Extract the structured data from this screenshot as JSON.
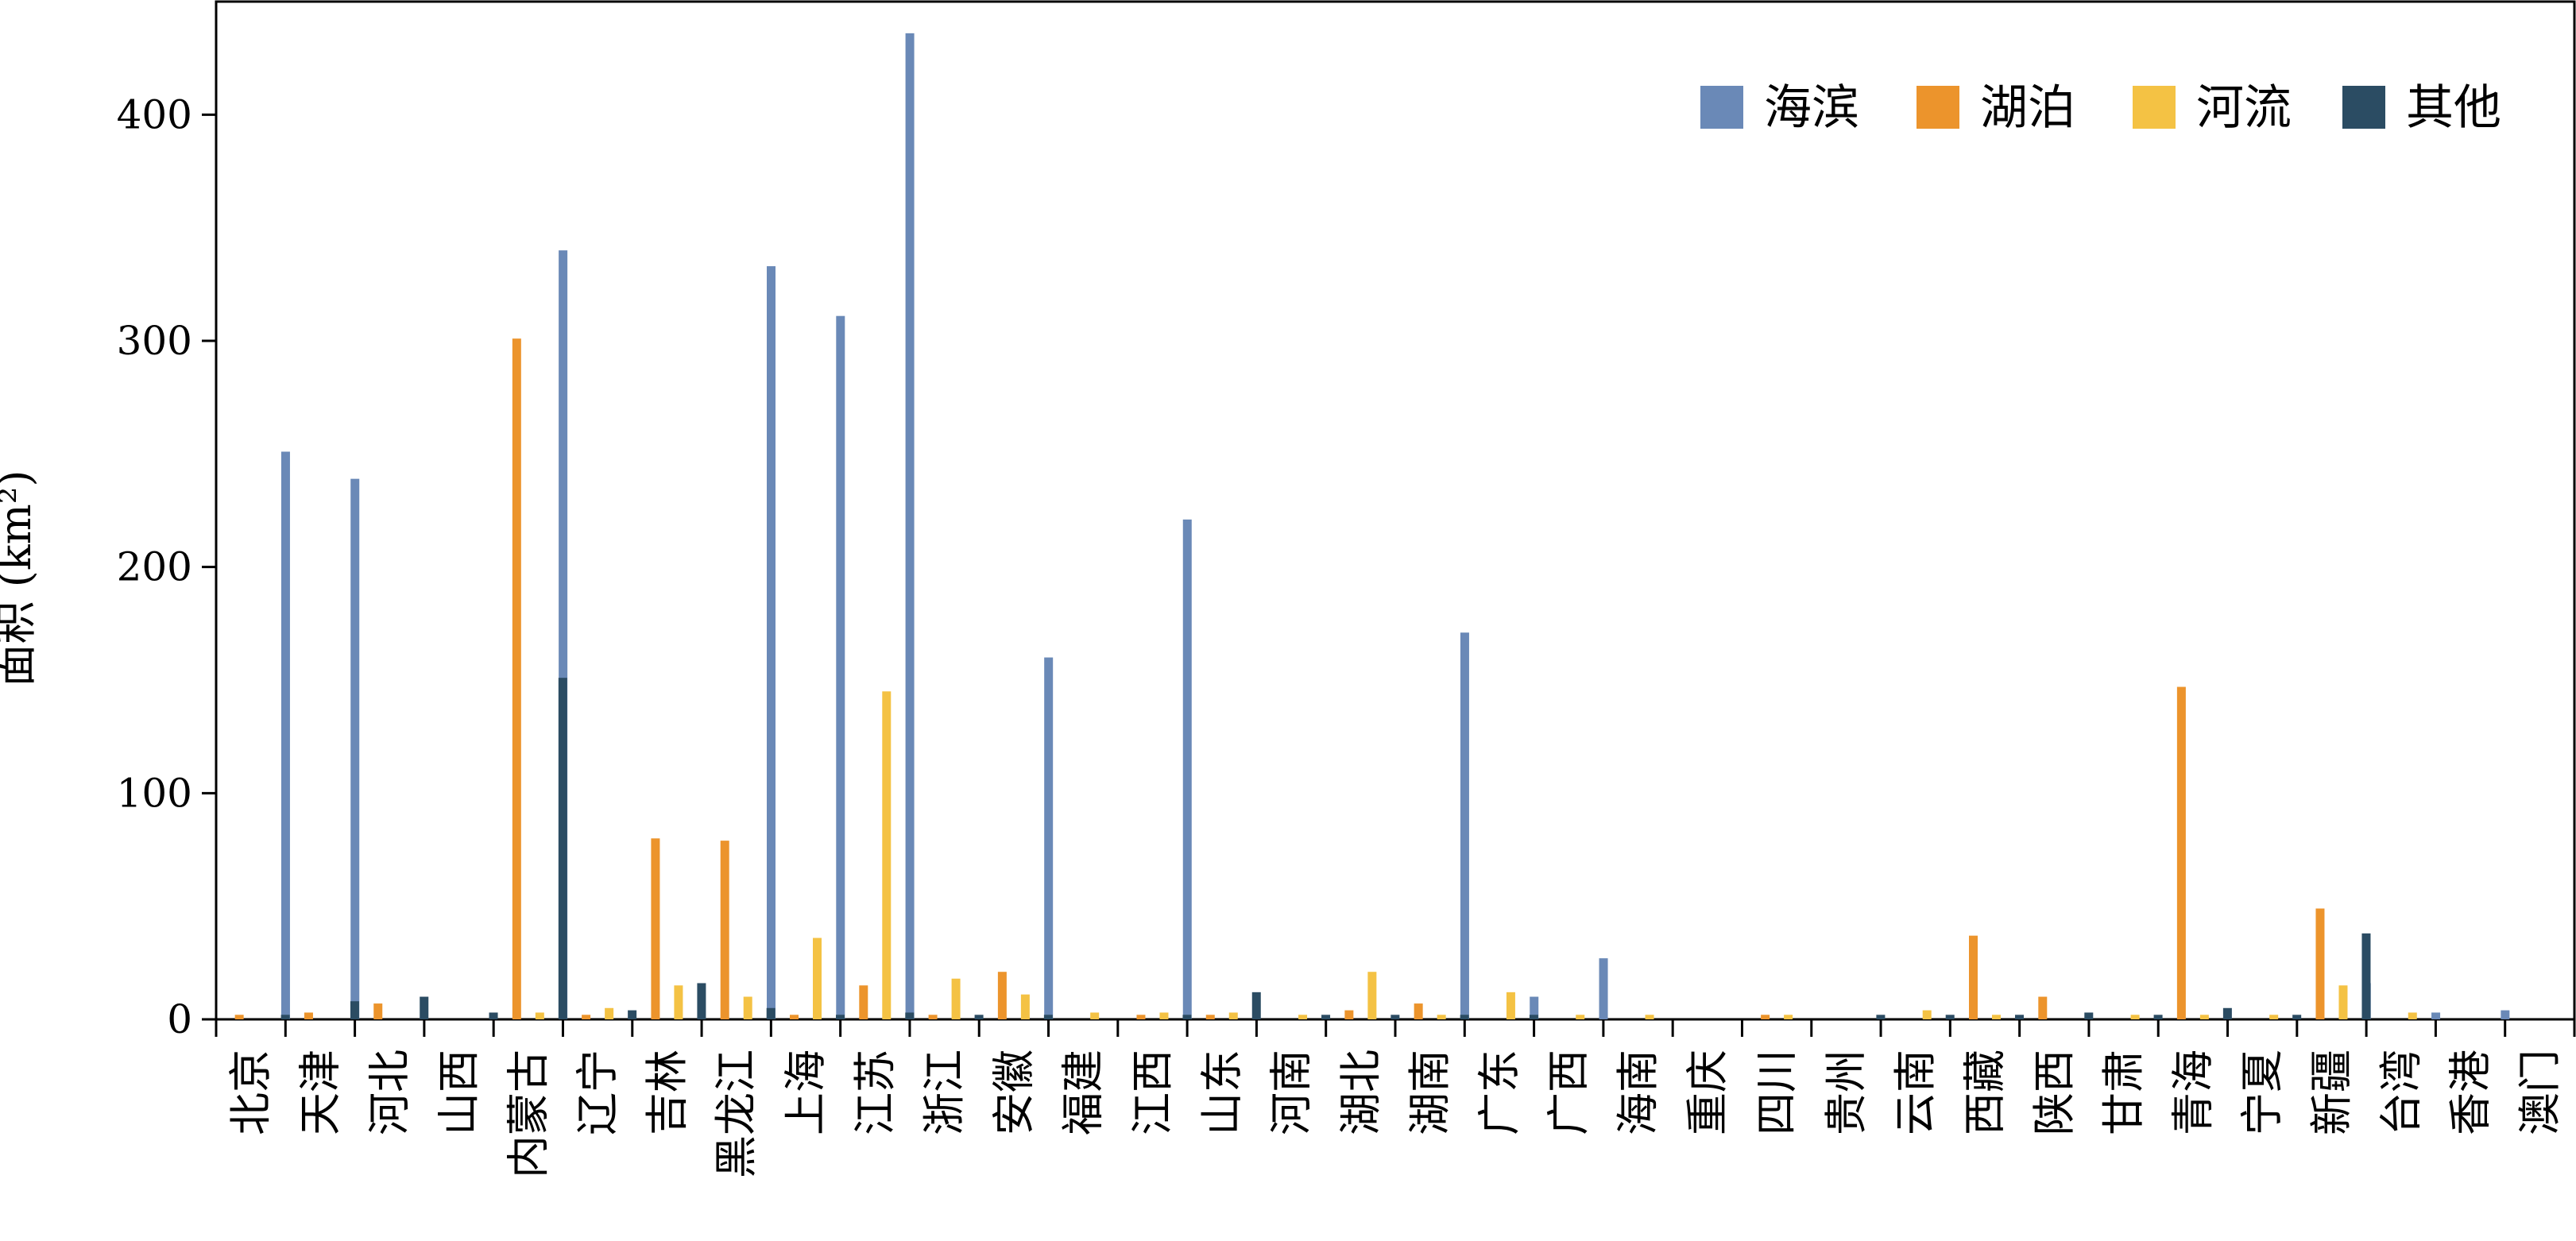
{
  "chart_data": {
    "type": "bar",
    "title": "",
    "xlabel": "",
    "ylabel": "面积 (km²)",
    "ylim": [
      0,
      450
    ],
    "yticks": [
      0,
      100,
      200,
      300,
      400
    ],
    "grid": false,
    "legend_position": "top-right",
    "categories": [
      "北京",
      "天津",
      "河北",
      "山西",
      "内蒙古",
      "辽宁",
      "吉林",
      "黑龙江",
      "上海",
      "江苏",
      "浙江",
      "安徽",
      "福建",
      "江西",
      "山东",
      "河南",
      "湖北",
      "湖南",
      "广东",
      "广西",
      "海南",
      "重庆",
      "四川",
      "贵州",
      "云南",
      "西藏",
      "陕西",
      "甘肃",
      "青海",
      "宁夏",
      "新疆",
      "台湾",
      "香港",
      "澳门"
    ],
    "series": [
      {
        "name": "海滨",
        "color": "#6a89b7",
        "values": [
          0,
          251,
          239,
          0,
          0,
          340,
          0,
          0,
          333,
          311,
          436,
          0,
          160,
          0,
          221,
          0,
          0,
          0,
          171,
          10,
          27,
          0,
          0,
          0,
          0,
          0,
          0,
          0,
          0,
          0,
          0,
          16,
          3,
          4
        ]
      },
      {
        "name": "湖泊",
        "color": "#ec942c",
        "values": [
          2,
          3,
          7,
          0,
          301,
          2,
          80,
          79,
          2,
          15,
          2,
          21,
          0,
          2,
          2,
          0,
          4,
          7,
          0,
          0,
          0,
          0,
          2,
          0,
          0,
          37,
          10,
          0,
          147,
          0,
          49,
          0,
          0,
          0
        ]
      },
      {
        "name": "河流",
        "color": "#f4c244",
        "values": [
          0,
          0,
          0,
          0,
          3,
          5,
          15,
          10,
          36,
          145,
          18,
          11,
          3,
          3,
          3,
          2,
          21,
          2,
          12,
          2,
          2,
          0,
          2,
          0,
          4,
          2,
          0,
          2,
          2,
          2,
          15,
          3,
          0,
          0
        ]
      },
      {
        "name": "其他",
        "color": "#2b4c63",
        "values": [
          2,
          8,
          10,
          3,
          151,
          4,
          16,
          5,
          2,
          3,
          2,
          2,
          0,
          2,
          12,
          2,
          2,
          2,
          2,
          0,
          0,
          0,
          0,
          2,
          2,
          2,
          3,
          2,
          5,
          2,
          38,
          0,
          0,
          0
        ]
      }
    ]
  }
}
